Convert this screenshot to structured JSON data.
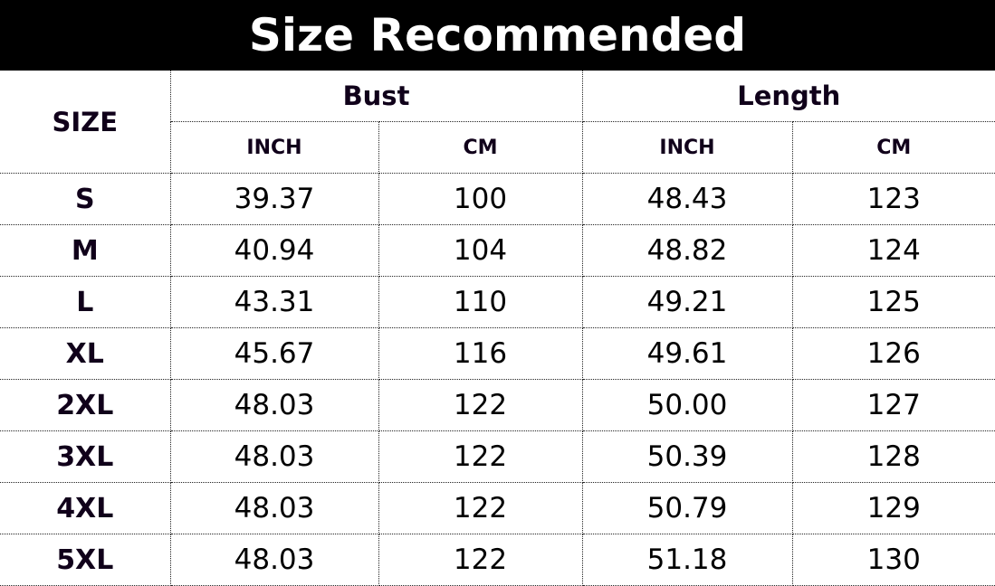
{
  "title": "Size Recommended",
  "headers": {
    "size": "SIZE",
    "bust": "Bust",
    "length": "Length",
    "inch": "INCH",
    "cm": "CM"
  },
  "rows": [
    {
      "size": "S",
      "bust_inch": "39.37",
      "bust_cm": "100",
      "length_inch": "48.43",
      "length_cm": "123"
    },
    {
      "size": "M",
      "bust_inch": "40.94",
      "bust_cm": "104",
      "length_inch": "48.82",
      "length_cm": "124"
    },
    {
      "size": "L",
      "bust_inch": "43.31",
      "bust_cm": "110",
      "length_inch": "49.21",
      "length_cm": "125"
    },
    {
      "size": "XL",
      "bust_inch": "45.67",
      "bust_cm": "116",
      "length_inch": "49.61",
      "length_cm": "126"
    },
    {
      "size": "2XL",
      "bust_inch": "48.03",
      "bust_cm": "122",
      "length_inch": "50.00",
      "length_cm": "127"
    },
    {
      "size": "3XL",
      "bust_inch": "48.03",
      "bust_cm": "122",
      "length_inch": "50.39",
      "length_cm": "128"
    },
    {
      "size": "4XL",
      "bust_inch": "48.03",
      "bust_cm": "122",
      "length_inch": "50.79",
      "length_cm": "129"
    },
    {
      "size": "5XL",
      "bust_inch": "48.03",
      "bust_cm": "122",
      "length_inch": "51.18",
      "length_cm": "130"
    }
  ]
}
